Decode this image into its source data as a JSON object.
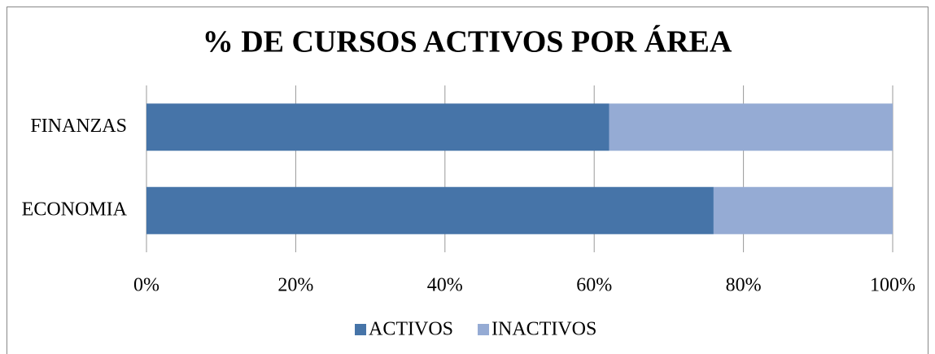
{
  "chart_data": {
    "type": "stacked-barh",
    "title": "% DE CURSOS ACTIVOS POR ÁREA",
    "categories": [
      "FINANZAS",
      "ECONOMIA"
    ],
    "series": [
      {
        "name": "ACTIVOS",
        "color": "#4674a8",
        "values": [
          62,
          76
        ]
      },
      {
        "name": "INACTIVOS",
        "color": "#95abd4",
        "values": [
          38,
          24
        ]
      }
    ],
    "xlim": [
      0,
      100
    ],
    "xticks": [
      {
        "value": 0,
        "label": "0%"
      },
      {
        "value": 20,
        "label": "20%"
      },
      {
        "value": 40,
        "label": "40%"
      },
      {
        "value": 60,
        "label": "60%"
      },
      {
        "value": 80,
        "label": "80%"
      },
      {
        "value": 100,
        "label": "100%"
      }
    ],
    "grid": true,
    "legend": "bottom"
  }
}
